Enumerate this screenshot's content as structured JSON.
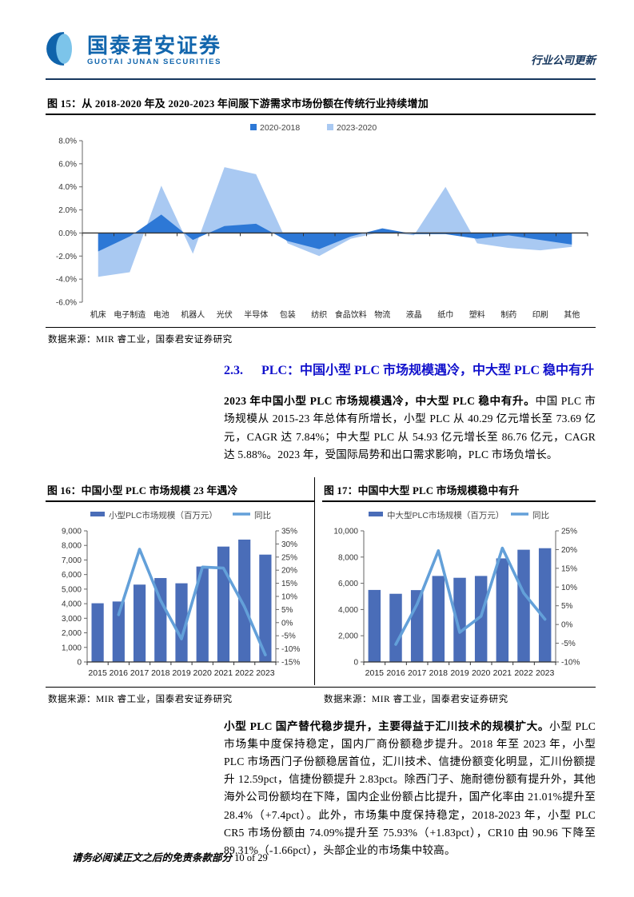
{
  "header": {
    "logo_cn": "国泰君安证券",
    "logo_en": "GUOTAI JUNAN SECURITIES",
    "doc_type": "行业公司更新"
  },
  "fig15": {
    "title": "图 15：从 2018-2020 年及 2020-2023 年间服下游需求市场份额在传统行业持续增加",
    "source": "数据来源：MIR 睿工业，国泰君安证券研究"
  },
  "section": {
    "number": "2.3.",
    "title": "PLC：中国小型 PLC 市场规模遇冷，中大型 PLC 稳中有升"
  },
  "para1": {
    "lead": "2023 年中国小型 PLC 市场规模遇冷，中大型 PLC 稳中有升。",
    "body": "中国 PLC 市场规模从 2015-23 年总体有所增长，小型 PLC 从 40.29 亿元增长至 73.69 亿元，CAGR 达 7.84%；中大型 PLC 从 54.93 亿元增长至 86.76 亿元，CAGR 达 5.88%。2023 年，受国际局势和出口需求影响，PLC 市场负增长。"
  },
  "fig16": {
    "title": "图 16：中国小型 PLC 市场规模 23 年遇冷",
    "source": "数据来源：MIR 睿工业，国泰君安证券研究"
  },
  "fig17": {
    "title": "图 17：中国中大型 PLC 市场规模稳中有升",
    "source": "数据来源：MIR 睿工业，国泰君安证券研究"
  },
  "para2": {
    "lead": "小型 PLC 国产替代稳步提升，主要得益于汇川技术的规模扩大。",
    "body": "小型 PLC 市场集中度保持稳定，国内厂商份额稳步提升。2018 年至 2023 年，小型 PLC 市场西门子份额稳居首位，汇川技术、信捷份额变化明显，汇川份额提升 12.59pct，信捷份额提升 2.83pct。除西门子、施耐德份额有提升外，其他海外公司份额均在下降，国内企业份额占比提升，国产化率由 21.01%提升至 28.4%（+7.4pct）。此外，市场集中度保持稳定，2018-2023 年，小型 PLC CR5 市场份额由 74.09%提升至 75.93%（+1.83pct），CR10 由 90.96 下降至 89.31%（-1.66pct），头部企业的市场集中较高。"
  },
  "footer": {
    "disclaimer": "请务必阅读正文之后的免责条款部分",
    "page": "10 of 29"
  },
  "colors": {
    "navy_rule": "#17375e",
    "section_blue": "#1111cc",
    "area_dark": "#2d78d6",
    "area_light": "#a9c9f2",
    "bar_navy": "#4a6db8",
    "line_blue": "#63a0d9"
  },
  "chart_data": [
    {
      "id": "fig15",
      "type": "area",
      "title": "从2018-2020年及2020-2023年间服下游需求市场份额在传统行业持续增加",
      "categories": [
        "机床",
        "电子制造",
        "电池",
        "机器人",
        "光伏",
        "半导体",
        "包装",
        "纺织",
        "食品饮料",
        "物流",
        "液晶",
        "纸巾",
        "塑料",
        "制药",
        "印刷",
        "其他"
      ],
      "series": [
        {
          "name": "2020-2018",
          "color": "#2d78d6",
          "values": [
            -1.6,
            -0.3,
            1.6,
            -0.6,
            0.6,
            0.8,
            -0.7,
            -1.4,
            -0.3,
            0.4,
            -0.1,
            -0.1,
            -0.5,
            -0.2,
            -0.6,
            -1.0
          ]
        },
        {
          "name": "2023-2020",
          "color": "#a9c9f2",
          "values": [
            -3.8,
            -3.4,
            4.1,
            -1.8,
            5.7,
            5.1,
            -0.9,
            -2.0,
            -0.5,
            0.1,
            -0.2,
            4.0,
            -0.9,
            -1.3,
            -1.5,
            -1.2
          ]
        }
      ],
      "ylim": [
        -6,
        8
      ],
      "ytick_step": 2,
      "ytick_format": "percent1",
      "grid": false,
      "legend_position": "top"
    },
    {
      "id": "fig16",
      "type": "bar+line",
      "title": "中国小型PLC市场规模23年遇冷",
      "categories": [
        "2015",
        "2016",
        "2017",
        "2018",
        "2019",
        "2020",
        "2021",
        "2022",
        "2023"
      ],
      "bar": {
        "name": "小型PLC市场规模（百万元）",
        "color": "#4a6db8",
        "values": [
          4029,
          4150,
          5310,
          5760,
          5400,
          6550,
          7920,
          8400,
          7369
        ]
      },
      "line": {
        "name": "同比",
        "color": "#63a0d9",
        "values": [
          null,
          3.0,
          28.0,
          8.5,
          -6.2,
          21.2,
          20.8,
          6.1,
          -12.3
        ]
      },
      "left_axis": {
        "min": 0,
        "max": 9000,
        "step": 1000
      },
      "right_axis": {
        "min": -15,
        "max": 35,
        "step": 5,
        "unit": "%"
      },
      "grid": false,
      "legend_position": "top"
    },
    {
      "id": "fig17",
      "type": "bar+line",
      "title": "中国中大型PLC市场规模稳中有升",
      "categories": [
        "2015",
        "2016",
        "2017",
        "2018",
        "2019",
        "2020",
        "2021",
        "2022",
        "2023"
      ],
      "bar": {
        "name": "中大型PLC市场规模（百万元）",
        "color": "#4a6db8",
        "values": [
          5493,
          5200,
          5480,
          6560,
          6420,
          6560,
          7900,
          8560,
          8676
        ]
      },
      "line": {
        "name": "同比",
        "color": "#63a0d9",
        "values": [
          null,
          -5.3,
          5.4,
          19.7,
          -2.1,
          2.2,
          20.4,
          8.4,
          1.4
        ]
      },
      "left_axis": {
        "min": 0,
        "max": 10000,
        "step": 2000
      },
      "right_axis": {
        "min": -10,
        "max": 25,
        "step": 5,
        "unit": "%"
      },
      "grid": false,
      "legend_position": "top"
    }
  ]
}
